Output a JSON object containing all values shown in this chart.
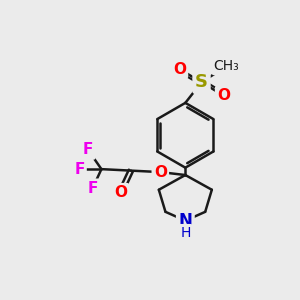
{
  "background_color": "#ebebeb",
  "bond_color": "#1a1a1a",
  "atom_colors": {
    "F": "#ee00ee",
    "O": "#ff0000",
    "S": "#999900",
    "N": "#0000cc",
    "C": "#1a1a1a"
  },
  "lw": 1.8,
  "fs": 11
}
